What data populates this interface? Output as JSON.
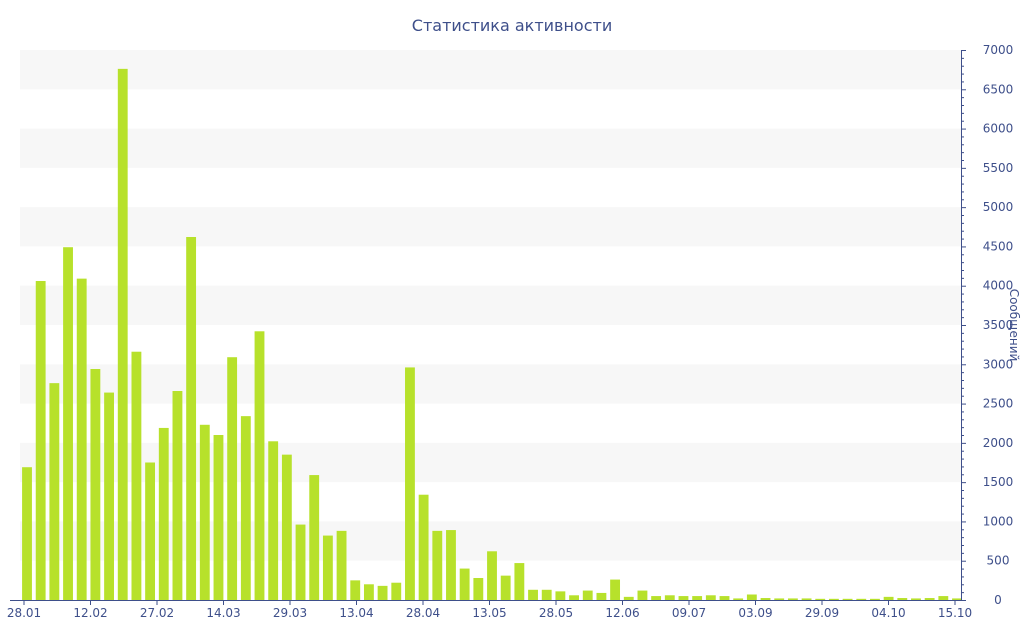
{
  "chart_data": {
    "type": "bar",
    "title": "Статистика активности",
    "xlabel": "",
    "ylabel": "Сообщений",
    "y_axis_side": "right",
    "ylim": [
      0,
      7000
    ],
    "y_ticks": [
      0,
      500,
      1000,
      1500,
      2000,
      2500,
      3000,
      3500,
      4000,
      4500,
      5000,
      5500,
      6000,
      6500,
      7000
    ],
    "grid": "alternating horizontal bands",
    "legend": "none",
    "x_tick_labels": [
      "28.01",
      "12.02",
      "27.02",
      "14.03",
      "29.03",
      "13.04",
      "28.04",
      "13.05",
      "28.05",
      "12.06",
      "09.07",
      "03.09",
      "29.09",
      "04.10",
      "15.10"
    ],
    "values": [
      1690,
      4060,
      2760,
      4490,
      4090,
      2940,
      2640,
      6760,
      3160,
      1750,
      2190,
      2660,
      4620,
      2230,
      2100,
      3090,
      2340,
      3420,
      2020,
      1850,
      960,
      1590,
      820,
      880,
      250,
      200,
      180,
      220,
      2960,
      1340,
      880,
      890,
      400,
      280,
      620,
      310,
      470,
      130,
      130,
      110,
      60,
      120,
      90,
      260,
      40,
      120,
      50,
      60,
      50,
      50,
      60,
      50,
      20,
      70,
      25,
      20,
      20,
      20,
      15,
      15,
      15,
      15,
      15,
      40,
      25,
      20,
      25,
      50,
      20
    ],
    "colors": {
      "bar": "#b7e12b",
      "band": "#f7f7f7",
      "text": "#3e4f8a",
      "axis": "#3e4f8a"
    }
  }
}
